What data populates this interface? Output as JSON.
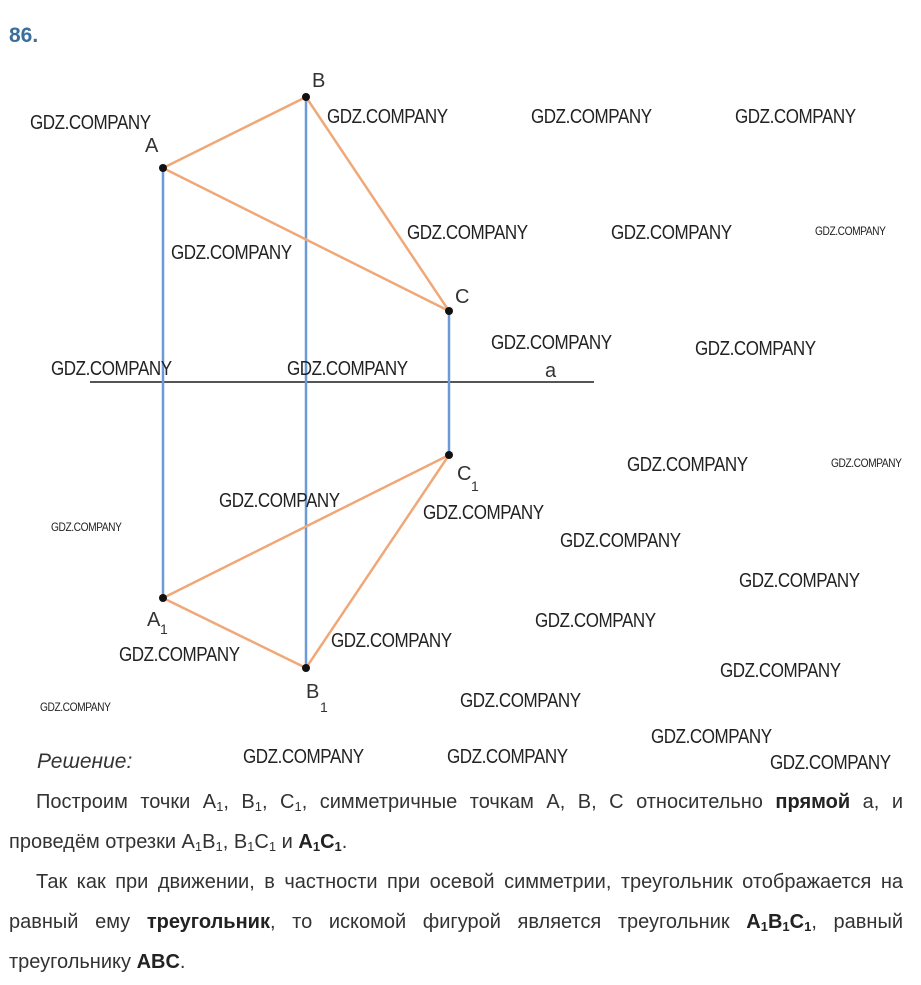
{
  "problem_number": "86.",
  "watermark": "GDZ.COMPANY",
  "diagram": {
    "points": {
      "A": "A",
      "B": "B",
      "C": "C",
      "A1": "A",
      "B1": "B",
      "C1": "C",
      "sub": "1"
    },
    "line_label": "a",
    "colors": {
      "triangle": "#f0a878",
      "perpendicular": "#6a9bd8",
      "axis": "#555555",
      "point": "#111111"
    }
  },
  "solution": {
    "title": "Решение:",
    "paragraphs": [
      [
        {
          "t": "Построим точки A"
        },
        {
          "t": "1",
          "sub": true
        },
        {
          "t": ", B"
        },
        {
          "t": "1",
          "sub": true
        },
        {
          "t": ", C"
        },
        {
          "t": "1",
          "sub": true
        },
        {
          "t": ", симметричные точкам A, B, C относительно "
        },
        {
          "t": "прямой",
          "b": true
        },
        {
          "t": " a, и проведём отрезки A"
        },
        {
          "t": "1",
          "sub": true
        },
        {
          "t": "B"
        },
        {
          "t": "1",
          "sub": true
        },
        {
          "t": ", B"
        },
        {
          "t": "1",
          "sub": true
        },
        {
          "t": "C"
        },
        {
          "t": "1",
          "sub": true
        },
        {
          "t": " и "
        },
        {
          "t": "A",
          "b": true
        },
        {
          "t": "1",
          "sub": true,
          "b": true
        },
        {
          "t": "C",
          "b": true
        },
        {
          "t": "1",
          "sub": true,
          "b": true
        },
        {
          "t": "."
        }
      ],
      [
        {
          "t": "Так как при движении, в частности при осевой симметрии, треугольник отображается на равный ему "
        },
        {
          "t": "треугольник",
          "b": true
        },
        {
          "t": ", то искомой фигурой является треугольник "
        },
        {
          "t": "A",
          "b": true
        },
        {
          "t": "1",
          "sub": true,
          "b": true
        },
        {
          "t": "B",
          "b": true
        },
        {
          "t": "1",
          "sub": true,
          "b": true
        },
        {
          "t": "C",
          "b": true
        },
        {
          "t": "1",
          "sub": true,
          "b": true
        },
        {
          "t": ", равный треугольнику "
        },
        {
          "t": "ABC",
          "b": true
        },
        {
          "t": "."
        }
      ]
    ]
  }
}
